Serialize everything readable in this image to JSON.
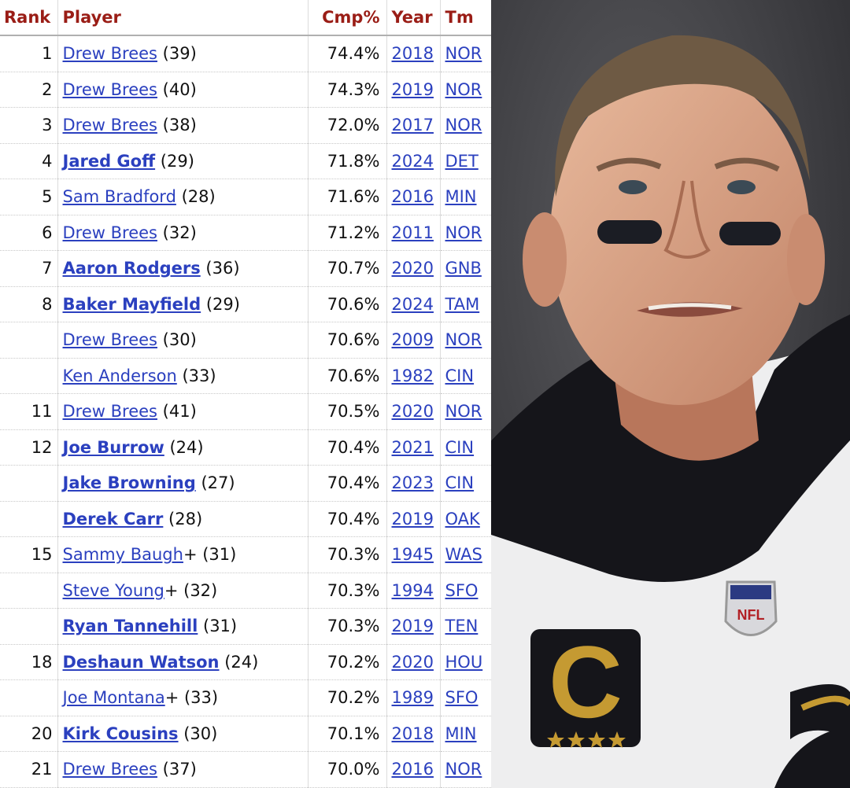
{
  "table": {
    "headers": {
      "rank": "Rank",
      "player": "Player",
      "cmp": "Cmp%",
      "year": "Year",
      "team": "Tm"
    },
    "rows": [
      {
        "rank": "1",
        "player": "Drew Brees",
        "hof": "",
        "age": " (39)",
        "active": false,
        "cmp": "74.4%",
        "year": "2018",
        "team": "NOR"
      },
      {
        "rank": "2",
        "player": "Drew Brees",
        "hof": "",
        "age": " (40)",
        "active": false,
        "cmp": "74.3%",
        "year": "2019",
        "team": "NOR"
      },
      {
        "rank": "3",
        "player": "Drew Brees",
        "hof": "",
        "age": " (38)",
        "active": false,
        "cmp": "72.0%",
        "year": "2017",
        "team": "NOR"
      },
      {
        "rank": "4",
        "player": "Jared Goff",
        "hof": "",
        "age": " (29)",
        "active": true,
        "cmp": "71.8%",
        "year": "2024",
        "team": "DET"
      },
      {
        "rank": "5",
        "player": "Sam Bradford",
        "hof": "",
        "age": " (28)",
        "active": false,
        "cmp": "71.6%",
        "year": "2016",
        "team": "MIN"
      },
      {
        "rank": "6",
        "player": "Drew Brees",
        "hof": "",
        "age": " (32)",
        "active": false,
        "cmp": "71.2%",
        "year": "2011",
        "team": "NOR"
      },
      {
        "rank": "7",
        "player": "Aaron Rodgers",
        "hof": "",
        "age": " (36)",
        "active": true,
        "cmp": "70.7%",
        "year": "2020",
        "team": "GNB"
      },
      {
        "rank": "8",
        "player": "Baker Mayfield",
        "hof": "",
        "age": " (29)",
        "active": true,
        "cmp": "70.6%",
        "year": "2024",
        "team": "TAM"
      },
      {
        "rank": "",
        "player": "Drew Brees",
        "hof": "",
        "age": " (30)",
        "active": false,
        "cmp": "70.6%",
        "year": "2009",
        "team": "NOR"
      },
      {
        "rank": "",
        "player": "Ken Anderson",
        "hof": "",
        "age": " (33)",
        "active": false,
        "cmp": "70.6%",
        "year": "1982",
        "team": "CIN"
      },
      {
        "rank": "11",
        "player": "Drew Brees",
        "hof": "",
        "age": " (41)",
        "active": false,
        "cmp": "70.5%",
        "year": "2020",
        "team": "NOR"
      },
      {
        "rank": "12",
        "player": "Joe Burrow",
        "hof": "",
        "age": " (24)",
        "active": true,
        "cmp": "70.4%",
        "year": "2021",
        "team": "CIN"
      },
      {
        "rank": "",
        "player": "Jake Browning",
        "hof": "",
        "age": " (27)",
        "active": true,
        "cmp": "70.4%",
        "year": "2023",
        "team": "CIN"
      },
      {
        "rank": "",
        "player": "Derek Carr",
        "hof": "",
        "age": " (28)",
        "active": true,
        "cmp": "70.4%",
        "year": "2019",
        "team": "OAK"
      },
      {
        "rank": "15",
        "player": "Sammy Baugh",
        "hof": "+",
        "age": " (31)",
        "active": false,
        "cmp": "70.3%",
        "year": "1945",
        "team": "WAS"
      },
      {
        "rank": "",
        "player": "Steve Young",
        "hof": "+",
        "age": " (32)",
        "active": false,
        "cmp": "70.3%",
        "year": "1994",
        "team": "SFO"
      },
      {
        "rank": "",
        "player": "Ryan Tannehill",
        "hof": "",
        "age": " (31)",
        "active": true,
        "cmp": "70.3%",
        "year": "2019",
        "team": "TEN"
      },
      {
        "rank": "18",
        "player": "Deshaun Watson",
        "hof": "",
        "age": " (24)",
        "active": true,
        "cmp": "70.2%",
        "year": "2020",
        "team": "HOU"
      },
      {
        "rank": "",
        "player": "Joe Montana",
        "hof": "+",
        "age": " (33)",
        "active": false,
        "cmp": "70.2%",
        "year": "1989",
        "team": "SFO"
      },
      {
        "rank": "20",
        "player": "Kirk Cousins",
        "hof": "",
        "age": " (30)",
        "active": true,
        "cmp": "70.1%",
        "year": "2018",
        "team": "MIN"
      },
      {
        "rank": "21",
        "player": "Drew Brees",
        "hof": "",
        "age": " (37)",
        "active": false,
        "cmp": "70.0%",
        "year": "2016",
        "team": "NOR"
      }
    ]
  },
  "photo": {
    "jersey_letter": "C",
    "logo_text": "NFL",
    "colors": {
      "header_text": "#9a1d16",
      "link": "#2b40bf",
      "jersey_black": "#15151a",
      "jersey_white": "#eeeeef",
      "patch_gold": "#c59a32",
      "skin": "#d9a385",
      "hair": "#6e5a44",
      "background": "#3a3a3e"
    }
  }
}
